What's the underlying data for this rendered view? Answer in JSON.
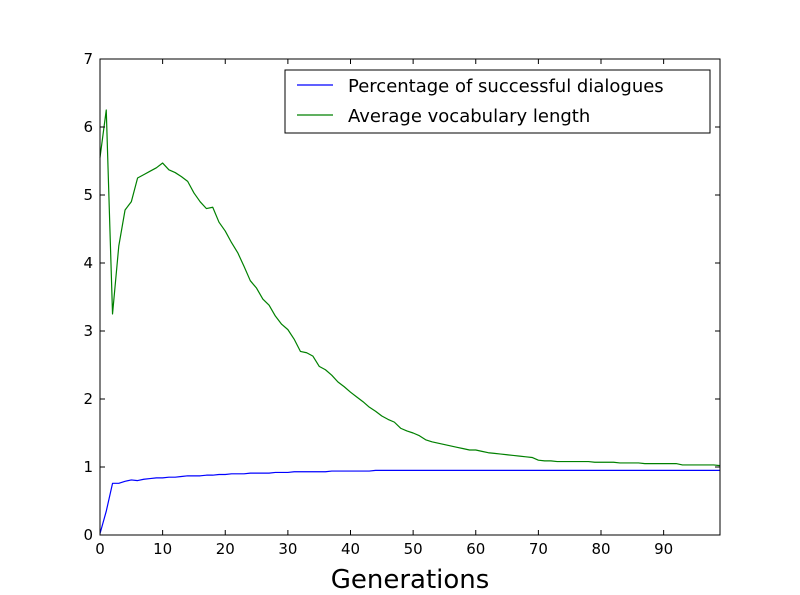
{
  "chart_data": {
    "type": "line",
    "title": "",
    "xlabel": "Generations",
    "ylabel": "",
    "xlim": [
      0,
      99
    ],
    "ylim": [
      0,
      7
    ],
    "xticks": [
      0,
      10,
      20,
      30,
      40,
      50,
      60,
      70,
      80,
      90
    ],
    "yticks": [
      0,
      1,
      2,
      3,
      4,
      5,
      6,
      7
    ],
    "grid": false,
    "legend_position": "top-right",
    "series": [
      {
        "name": "Percentage of successful dialogues",
        "color": "#0000ff",
        "x": [
          0,
          1,
          2,
          3,
          4,
          5,
          6,
          7,
          8,
          9,
          10,
          11,
          12,
          13,
          14,
          15,
          16,
          17,
          18,
          19,
          20,
          21,
          22,
          23,
          24,
          25,
          26,
          27,
          28,
          29,
          30,
          31,
          32,
          33,
          34,
          35,
          36,
          37,
          38,
          39,
          40,
          41,
          42,
          43,
          44,
          45,
          46,
          47,
          48,
          49,
          50,
          51,
          52,
          53,
          54,
          55,
          56,
          57,
          58,
          59,
          60,
          61,
          62,
          63,
          64,
          65,
          66,
          67,
          68,
          69,
          70,
          71,
          72,
          73,
          74,
          75,
          76,
          77,
          78,
          79,
          80,
          81,
          82,
          83,
          84,
          85,
          86,
          87,
          88,
          89,
          90,
          91,
          92,
          93,
          94,
          95,
          96,
          97,
          98,
          99
        ],
        "y": [
          0.02,
          0.35,
          0.76,
          0.76,
          0.79,
          0.81,
          0.8,
          0.82,
          0.83,
          0.84,
          0.84,
          0.85,
          0.85,
          0.86,
          0.87,
          0.87,
          0.87,
          0.88,
          0.88,
          0.89,
          0.89,
          0.9,
          0.9,
          0.9,
          0.91,
          0.91,
          0.91,
          0.91,
          0.92,
          0.92,
          0.92,
          0.93,
          0.93,
          0.93,
          0.93,
          0.93,
          0.93,
          0.94,
          0.94,
          0.94,
          0.94,
          0.94,
          0.94,
          0.94,
          0.95,
          0.95,
          0.95,
          0.95,
          0.95,
          0.95,
          0.95,
          0.95,
          0.95,
          0.95,
          0.95,
          0.95,
          0.95,
          0.95,
          0.95,
          0.95,
          0.95,
          0.95,
          0.95,
          0.95,
          0.95,
          0.95,
          0.95,
          0.95,
          0.95,
          0.95,
          0.95,
          0.95,
          0.95,
          0.95,
          0.95,
          0.95,
          0.95,
          0.95,
          0.95,
          0.95,
          0.95,
          0.95,
          0.95,
          0.95,
          0.95,
          0.95,
          0.95,
          0.95,
          0.95,
          0.95,
          0.95,
          0.95,
          0.95,
          0.95,
          0.95,
          0.95,
          0.95,
          0.95,
          0.95,
          0.95
        ]
      },
      {
        "name": "Average vocabulary length",
        "color": "#008000",
        "x": [
          0,
          1,
          2,
          3,
          4,
          5,
          6,
          7,
          8,
          9,
          10,
          11,
          12,
          13,
          14,
          15,
          16,
          17,
          18,
          19,
          20,
          21,
          22,
          23,
          24,
          25,
          26,
          27,
          28,
          29,
          30,
          31,
          32,
          33,
          34,
          35,
          36,
          37,
          38,
          39,
          40,
          41,
          42,
          43,
          44,
          45,
          46,
          47,
          48,
          49,
          50,
          51,
          52,
          53,
          54,
          55,
          56,
          57,
          58,
          59,
          60,
          61,
          62,
          63,
          64,
          65,
          66,
          67,
          68,
          69,
          70,
          71,
          72,
          73,
          74,
          75,
          76,
          77,
          78,
          79,
          80,
          81,
          82,
          83,
          84,
          85,
          86,
          87,
          88,
          89,
          90,
          91,
          92,
          93,
          94,
          95,
          96,
          97,
          98,
          99
        ],
        "y": [
          5.55,
          6.25,
          3.25,
          4.25,
          4.78,
          4.9,
          5.25,
          5.3,
          5.35,
          5.4,
          5.47,
          5.37,
          5.33,
          5.27,
          5.2,
          5.03,
          4.9,
          4.8,
          4.82,
          4.6,
          4.47,
          4.3,
          4.15,
          3.95,
          3.74,
          3.63,
          3.47,
          3.38,
          3.22,
          3.1,
          3.02,
          2.88,
          2.7,
          2.68,
          2.63,
          2.48,
          2.43,
          2.35,
          2.25,
          2.18,
          2.1,
          2.03,
          1.96,
          1.88,
          1.82,
          1.75,
          1.7,
          1.66,
          1.57,
          1.53,
          1.5,
          1.46,
          1.4,
          1.37,
          1.35,
          1.33,
          1.31,
          1.29,
          1.27,
          1.25,
          1.25,
          1.23,
          1.21,
          1.2,
          1.19,
          1.18,
          1.17,
          1.16,
          1.15,
          1.14,
          1.1,
          1.09,
          1.09,
          1.08,
          1.08,
          1.08,
          1.08,
          1.08,
          1.08,
          1.07,
          1.07,
          1.07,
          1.07,
          1.06,
          1.06,
          1.06,
          1.06,
          1.05,
          1.05,
          1.05,
          1.05,
          1.05,
          1.05,
          1.03,
          1.03,
          1.03,
          1.03,
          1.03,
          1.03,
          1.02
        ]
      }
    ]
  }
}
